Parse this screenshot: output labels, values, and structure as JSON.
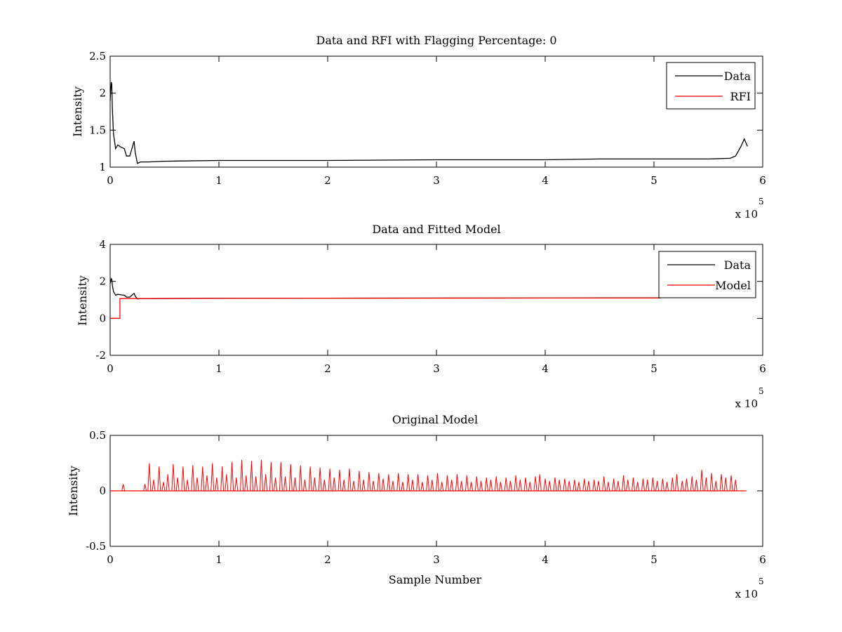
{
  "figure": {
    "background": "#ffffff",
    "data_color": "#000000",
    "model_color": "#ff0000"
  },
  "chart_data": [
    {
      "type": "line",
      "title": "Data and RFI with Flagging Percentage: 0",
      "xlabel": "",
      "ylabel": "Intensity",
      "xlim": [
        0,
        6
      ],
      "ylim": [
        1,
        2.5
      ],
      "x_multiplier_text": "x 10",
      "x_multiplier_exp": "5",
      "xticks": [
        0,
        1,
        2,
        3,
        4,
        5,
        6
      ],
      "xtick_labels": [
        "0",
        "1",
        "2",
        "3",
        "4",
        "5",
        "6"
      ],
      "yticks": [
        1,
        1.5,
        2,
        2.5
      ],
      "ytick_labels": [
        "1",
        "1.5",
        "2",
        "2.5"
      ],
      "legend_position": "top-right",
      "series": [
        {
          "name": "Data",
          "color": "#000000",
          "x": [
            0,
            0.01,
            0.015,
            0.02,
            0.03,
            0.05,
            0.07,
            0.1,
            0.13,
            0.15,
            0.18,
            0.2,
            0.22,
            0.23,
            0.25,
            0.28,
            0.35,
            0.5,
            1.0,
            1.5,
            2.0,
            2.5,
            3.0,
            3.5,
            4.0,
            4.5,
            5.0,
            5.5,
            5.7,
            5.75,
            5.8,
            5.83,
            5.86
          ],
          "y": [
            1.9,
            2.15,
            2.12,
            1.8,
            1.45,
            1.25,
            1.3,
            1.27,
            1.25,
            1.15,
            1.15,
            1.25,
            1.35,
            1.2,
            1.05,
            1.07,
            1.07,
            1.08,
            1.09,
            1.09,
            1.09,
            1.095,
            1.1,
            1.1,
            1.1,
            1.11,
            1.11,
            1.11,
            1.12,
            1.15,
            1.28,
            1.38,
            1.28
          ]
        },
        {
          "name": "RFI",
          "color": "#ff0000",
          "x": [],
          "y": []
        }
      ]
    },
    {
      "type": "line",
      "title": "Data and Fitted Model",
      "xlabel": "",
      "ylabel": "Intensity",
      "xlim": [
        0,
        6
      ],
      "ylim": [
        -2,
        4
      ],
      "x_multiplier_text": "x 10",
      "x_multiplier_exp": "5",
      "xticks": [
        0,
        1,
        2,
        3,
        4,
        5,
        6
      ],
      "xtick_labels": [
        "0",
        "1",
        "2",
        "3",
        "4",
        "5",
        "6"
      ],
      "yticks": [
        -2,
        0,
        2,
        4
      ],
      "ytick_labels": [
        "-2",
        "0",
        "2",
        "4"
      ],
      "legend_position": "top-right",
      "series": [
        {
          "name": "Data",
          "color": "#000000",
          "x": [
            0,
            0.01,
            0.015,
            0.02,
            0.03,
            0.05,
            0.07,
            0.1,
            0.13,
            0.15,
            0.18,
            0.2,
            0.22,
            0.23,
            0.25,
            0.28,
            0.35,
            1.0,
            2.0,
            3.0,
            4.0,
            5.0,
            5.06
          ],
          "y": [
            1.9,
            2.15,
            2.12,
            1.8,
            1.45,
            1.25,
            1.3,
            1.27,
            1.25,
            1.15,
            1.15,
            1.25,
            1.35,
            1.2,
            1.05,
            1.07,
            1.07,
            1.09,
            1.09,
            1.1,
            1.1,
            1.11,
            1.11
          ]
        },
        {
          "name": "Model",
          "color": "#ff0000",
          "x": [
            0,
            0.09,
            0.09,
            1.0,
            2.0,
            3.0,
            4.0,
            5.06
          ],
          "y": [
            0,
            0,
            1.07,
            1.08,
            1.09,
            1.09,
            1.1,
            1.1
          ]
        }
      ]
    },
    {
      "type": "line",
      "title": "Original Model",
      "xlabel": "Sample Number",
      "ylabel": "Intensity",
      "xlim": [
        0,
        6
      ],
      "ylim": [
        -0.5,
        0.5
      ],
      "x_multiplier_text": "x 10",
      "x_multiplier_exp": "5",
      "xticks": [
        0,
        1,
        2,
        3,
        4,
        5,
        6
      ],
      "xtick_labels": [
        "0",
        "1",
        "2",
        "3",
        "4",
        "5",
        "6"
      ],
      "yticks": [
        -0.5,
        0,
        0.5
      ],
      "ytick_labels": [
        "-0.5",
        "0",
        "0.5"
      ],
      "series": [
        {
          "name": "",
          "color": "#ff0000",
          "spikes_x": [
            0.12,
            0.32,
            0.36,
            0.4,
            0.45,
            0.49,
            0.53,
            0.58,
            0.62,
            0.67,
            0.71,
            0.76,
            0.8,
            0.85,
            0.89,
            0.94,
            0.98,
            1.03,
            1.07,
            1.12,
            1.16,
            1.21,
            1.25,
            1.3,
            1.34,
            1.39,
            1.43,
            1.48,
            1.52,
            1.57,
            1.61,
            1.66,
            1.7,
            1.75,
            1.79,
            1.84,
            1.88,
            1.93,
            1.97,
            2.02,
            2.06,
            2.11,
            2.15,
            2.2,
            2.24,
            2.29,
            2.33,
            2.38,
            2.42,
            2.47,
            2.51,
            2.56,
            2.6,
            2.65,
            2.69,
            2.74,
            2.78,
            2.83,
            2.87,
            2.92,
            2.96,
            3.01,
            3.05,
            3.1,
            3.14,
            3.19,
            3.23,
            3.28,
            3.32,
            3.37,
            3.41,
            3.46,
            3.5,
            3.55,
            3.59,
            3.64,
            3.68,
            3.73,
            3.77,
            3.82,
            3.86,
            3.91,
            3.95,
            4.0,
            4.04,
            4.09,
            4.13,
            4.18,
            4.22,
            4.27,
            4.31,
            4.36,
            4.4,
            4.45,
            4.49,
            4.54,
            4.58,
            4.63,
            4.67,
            4.72,
            4.76,
            4.81,
            4.85,
            4.9,
            4.94,
            4.99,
            5.03,
            5.08,
            5.12,
            5.17,
            5.21,
            5.26,
            5.3,
            5.35,
            5.39,
            5.44,
            5.48,
            5.53,
            5.57,
            5.62,
            5.66,
            5.71,
            5.75
          ],
          "spikes_y": [
            0.06,
            0.06,
            0.25,
            0.1,
            0.22,
            0.08,
            0.15,
            0.24,
            0.12,
            0.22,
            0.1,
            0.23,
            0.12,
            0.22,
            0.14,
            0.25,
            0.12,
            0.22,
            0.15,
            0.26,
            0.12,
            0.28,
            0.14,
            0.27,
            0.13,
            0.28,
            0.15,
            0.26,
            0.12,
            0.26,
            0.13,
            0.24,
            0.12,
            0.23,
            0.1,
            0.22,
            0.12,
            0.21,
            0.1,
            0.2,
            0.12,
            0.19,
            0.1,
            0.2,
            0.09,
            0.18,
            0.1,
            0.17,
            0.09,
            0.16,
            0.11,
            0.15,
            0.09,
            0.16,
            0.08,
            0.15,
            0.1,
            0.15,
            0.08,
            0.14,
            0.1,
            0.16,
            0.08,
            0.14,
            0.1,
            0.15,
            0.09,
            0.14,
            0.08,
            0.13,
            0.09,
            0.12,
            0.1,
            0.13,
            0.08,
            0.12,
            0.09,
            0.14,
            0.1,
            0.12,
            0.08,
            0.13,
            0.15,
            0.11,
            0.09,
            0.12,
            0.1,
            0.11,
            0.09,
            0.1,
            0.08,
            0.11,
            0.09,
            0.1,
            0.09,
            0.13,
            0.08,
            0.11,
            0.09,
            0.14,
            0.1,
            0.12,
            0.08,
            0.11,
            0.1,
            0.12,
            0.09,
            0.11,
            0.08,
            0.12,
            0.15,
            0.09,
            0.11,
            0.13,
            0.1,
            0.19,
            0.12,
            0.16,
            0.09,
            0.15,
            0.12,
            0.14,
            0.1
          ]
        }
      ]
    }
  ]
}
